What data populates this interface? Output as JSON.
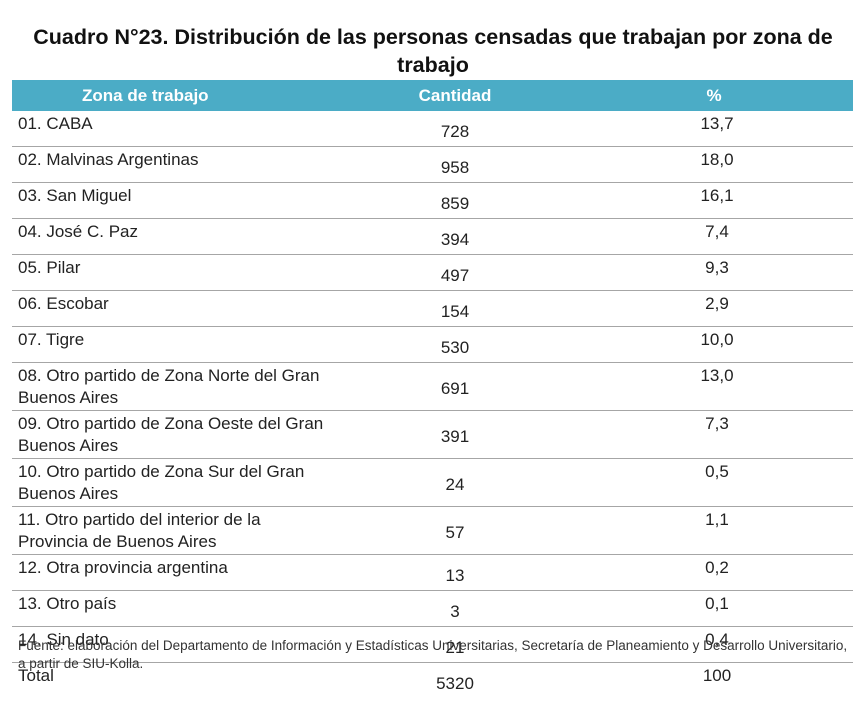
{
  "title": "Cuadro N°23. Distribución de las personas censadas que trabajan por zona de trabajo",
  "table": {
    "headers": [
      "Zona de trabajo",
      "Cantidad",
      "%"
    ],
    "rows": [
      {
        "zona": "01. CABA",
        "cantidad": "728",
        "pct": "13,7"
      },
      {
        "zona": "02. Malvinas Argentinas",
        "cantidad": "958",
        "pct": "18,0"
      },
      {
        "zona": "03. San Miguel",
        "cantidad": "859",
        "pct": "16,1"
      },
      {
        "zona": "04. José C. Paz",
        "cantidad": "394",
        "pct": "7,4"
      },
      {
        "zona": "05. Pilar",
        "cantidad": "497",
        "pct": "9,3"
      },
      {
        "zona": "06. Escobar",
        "cantidad": "154",
        "pct": "2,9"
      },
      {
        "zona": "07. Tigre",
        "cantidad": "530",
        "pct": "10,0"
      },
      {
        "zona": "08. Otro partido de Zona Norte del Gran Buenos Aires",
        "cantidad": "691",
        "pct": "13,0"
      },
      {
        "zona": "09. Otro partido de Zona Oeste del Gran Buenos Aires",
        "cantidad": "391",
        "pct": "7,3"
      },
      {
        "zona": "10. Otro partido de Zona Sur del Gran Buenos Aires",
        "cantidad": "24",
        "pct": "0,5"
      },
      {
        "zona": "11. Otro partido del interior de la Provincia de Buenos Aires",
        "cantidad": "57",
        "pct": "1,1"
      },
      {
        "zona": "12. Otra provincia argentina",
        "cantidad": "13",
        "pct": "0,2"
      },
      {
        "zona": "13. Otro país",
        "cantidad": "3",
        "pct": "0,1"
      },
      {
        "zona": "14. Sin dato",
        "cantidad": "21",
        "pct": "0,4"
      }
    ],
    "total": {
      "label": "Total",
      "cantidad": "5320",
      "pct": "100"
    }
  },
  "source": "Fuente: elaboración del Departamento de Información y Estadísticas Universitarias, Secretaría de Planeamiento y Desarrollo Universitario, a partir de  SIU-Kolla."
}
